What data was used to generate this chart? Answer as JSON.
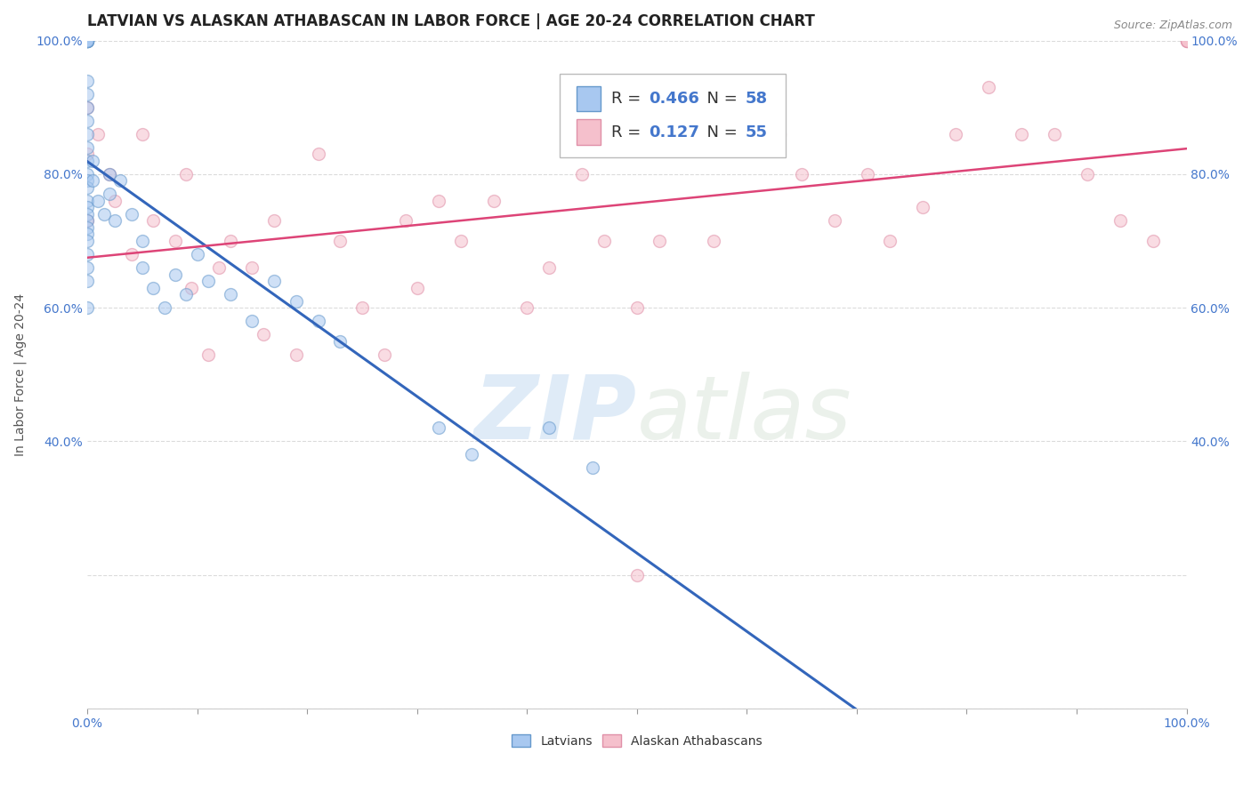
{
  "title": "LATVIAN VS ALASKAN ATHABASCAN IN LABOR FORCE | AGE 20-24 CORRELATION CHART",
  "source_text": "Source: ZipAtlas.com",
  "ylabel": "In Labor Force | Age 20-24",
  "xlim": [
    0.0,
    1.0
  ],
  "ylim": [
    0.0,
    1.0
  ],
  "background_color": "#ffffff",
  "grid_color": "#cccccc",
  "latvian_color": "#a8c8f0",
  "latvian_edge_color": "#6699cc",
  "athabascan_color": "#f5c0cc",
  "athabascan_edge_color": "#e090a8",
  "latvian_line_color": "#3366bb",
  "athabascan_line_color": "#dd4477",
  "tick_color": "#4477cc",
  "legend_R1": "0.466",
  "legend_N1": "58",
  "legend_R2": "0.127",
  "legend_N2": "55",
  "legend_label1": "Latvians",
  "legend_label2": "Alaskan Athabascans",
  "watermark_zip": "ZIP",
  "watermark_atlas": "atlas",
  "latvian_x": [
    0.0,
    0.0,
    0.0,
    0.0,
    0.0,
    0.0,
    0.0,
    0.0,
    0.0,
    0.0,
    0.0,
    0.0,
    0.0,
    0.0,
    0.0,
    0.0,
    0.0,
    0.0,
    0.0,
    0.0,
    0.0,
    0.0,
    0.0,
    0.0,
    0.0,
    0.0,
    0.0,
    0.0,
    0.0,
    0.0,
    0.0,
    0.005,
    0.005,
    0.01,
    0.015,
    0.02,
    0.02,
    0.025,
    0.03,
    0.04,
    0.05,
    0.05,
    0.06,
    0.07,
    0.08,
    0.09,
    0.1,
    0.11,
    0.13,
    0.15,
    0.17,
    0.19,
    0.21,
    0.23,
    0.32,
    0.35,
    0.42,
    0.46
  ],
  "latvian_y": [
    1.0,
    1.0,
    1.0,
    1.0,
    1.0,
    1.0,
    1.0,
    1.0,
    1.0,
    1.0,
    0.94,
    0.92,
    0.9,
    0.88,
    0.86,
    0.84,
    0.82,
    0.8,
    0.79,
    0.78,
    0.76,
    0.75,
    0.74,
    0.73,
    0.72,
    0.71,
    0.7,
    0.68,
    0.66,
    0.64,
    0.6,
    0.82,
    0.79,
    0.76,
    0.74,
    0.8,
    0.77,
    0.73,
    0.79,
    0.74,
    0.7,
    0.66,
    0.63,
    0.6,
    0.65,
    0.62,
    0.68,
    0.64,
    0.62,
    0.58,
    0.64,
    0.61,
    0.58,
    0.55,
    0.42,
    0.38,
    0.42,
    0.36
  ],
  "athabascan_x": [
    0.0,
    0.0,
    0.0,
    0.01,
    0.02,
    0.025,
    0.04,
    0.05,
    0.06,
    0.08,
    0.09,
    0.095,
    0.11,
    0.12,
    0.13,
    0.15,
    0.16,
    0.17,
    0.19,
    0.21,
    0.23,
    0.25,
    0.27,
    0.29,
    0.3,
    0.32,
    0.34,
    0.37,
    0.4,
    0.42,
    0.45,
    0.47,
    0.5,
    0.52,
    0.55,
    0.57,
    0.6,
    0.63,
    0.65,
    0.68,
    0.71,
    0.73,
    0.76,
    0.79,
    0.82,
    0.85,
    0.88,
    0.91,
    0.94,
    0.97,
    1.0,
    1.0,
    1.0,
    1.0,
    0.5
  ],
  "athabascan_y": [
    0.9,
    0.83,
    0.73,
    0.86,
    0.8,
    0.76,
    0.68,
    0.86,
    0.73,
    0.7,
    0.8,
    0.63,
    0.53,
    0.66,
    0.7,
    0.66,
    0.56,
    0.73,
    0.53,
    0.83,
    0.7,
    0.6,
    0.53,
    0.73,
    0.63,
    0.76,
    0.7,
    0.76,
    0.6,
    0.66,
    0.8,
    0.7,
    0.6,
    0.7,
    0.85,
    0.7,
    0.86,
    0.86,
    0.8,
    0.73,
    0.8,
    0.7,
    0.75,
    0.86,
    0.93,
    0.86,
    0.86,
    0.8,
    0.73,
    0.7,
    1.0,
    1.0,
    1.0,
    1.0,
    0.2
  ],
  "marker_size": 100,
  "marker_alpha": 0.55,
  "title_fontsize": 12,
  "axis_fontsize": 10,
  "tick_fontsize": 10,
  "legend_fontsize": 13
}
